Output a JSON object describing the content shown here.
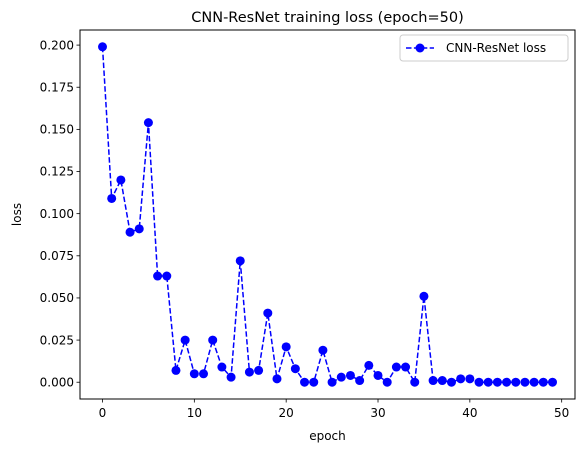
{
  "chart_data": {
    "type": "line",
    "title": "CNN-ResNet training loss (epoch=50)",
    "xlabel": "epoch",
    "ylabel": "loss",
    "xlim": [
      -2.45,
      51.45
    ],
    "ylim": [
      -0.00995,
      0.20895
    ],
    "xticks": [
      0,
      10,
      20,
      30,
      40,
      50
    ],
    "xtick_labels": [
      "0",
      "10",
      "20",
      "30",
      "40",
      "50"
    ],
    "yticks": [
      0.0,
      0.025,
      0.05,
      0.075,
      0.1,
      0.125,
      0.15,
      0.175,
      0.2
    ],
    "ytick_labels": [
      "0.000",
      "0.025",
      "0.050",
      "0.075",
      "0.100",
      "0.125",
      "0.150",
      "0.175",
      "0.200"
    ],
    "grid": false,
    "legend_position": "top-right",
    "series": [
      {
        "name": "CNN-ResNet loss",
        "color": "#0000ff",
        "line_style": "dashed",
        "marker": "circle",
        "x": [
          0,
          1,
          2,
          3,
          4,
          5,
          6,
          7,
          8,
          9,
          10,
          11,
          12,
          13,
          14,
          15,
          16,
          17,
          18,
          19,
          20,
          21,
          22,
          23,
          24,
          25,
          26,
          27,
          28,
          29,
          30,
          31,
          32,
          33,
          34,
          35,
          36,
          37,
          38,
          39,
          40,
          41,
          42,
          43,
          44,
          45,
          46,
          47,
          48,
          49
        ],
        "values": [
          0.199,
          0.109,
          0.12,
          0.089,
          0.091,
          0.154,
          0.063,
          0.063,
          0.007,
          0.025,
          0.005,
          0.005,
          0.025,
          0.009,
          0.003,
          0.072,
          0.006,
          0.007,
          0.041,
          0.002,
          0.021,
          0.008,
          0.0,
          0.0,
          0.019,
          0.0,
          0.003,
          0.004,
          0.001,
          0.01,
          0.004,
          0.0,
          0.009,
          0.009,
          0.0,
          0.051,
          0.001,
          0.001,
          0.0,
          0.002,
          0.002,
          0.0,
          0.0,
          0.0,
          0.0,
          0.0,
          0.0,
          0.0,
          0.0,
          0.0
        ]
      }
    ]
  }
}
